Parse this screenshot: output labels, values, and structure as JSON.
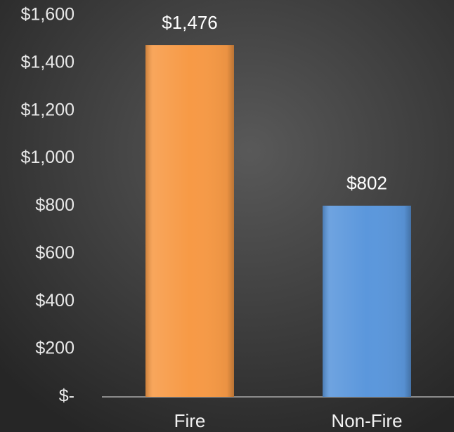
{
  "chart_data": {
    "type": "bar",
    "categories": [
      "Fire",
      "Non-Fire"
    ],
    "values": [
      1476,
      802
    ],
    "value_labels": [
      "$1,476",
      "$802"
    ],
    "colors": [
      "#f79a46",
      "#5b97dc"
    ],
    "ylim": [
      0,
      1600
    ],
    "yticks": [
      {
        "value": 0,
        "label": "$-"
      },
      {
        "value": 200,
        "label": "$200"
      },
      {
        "value": 400,
        "label": "$400"
      },
      {
        "value": 600,
        "label": "$600"
      },
      {
        "value": 800,
        "label": "$800"
      },
      {
        "value": 1000,
        "label": "$1,000"
      },
      {
        "value": 1200,
        "label": "$1,200"
      },
      {
        "value": 1400,
        "label": "$1,400"
      },
      {
        "value": 1600,
        "label": "$1,600"
      }
    ],
    "grid": false
  }
}
